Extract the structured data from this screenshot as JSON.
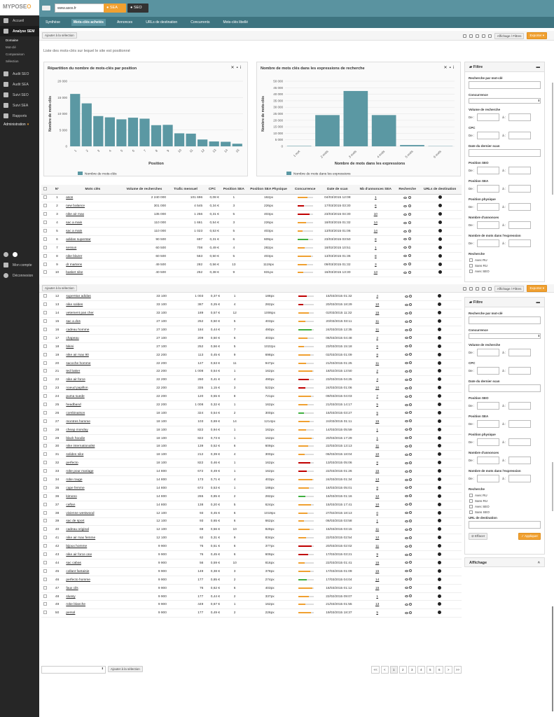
{
  "app": {
    "logo_a": "MYPOSE",
    "logo_b": "O"
  },
  "sidebar": {
    "items": [
      {
        "label": "Accueil"
      },
      {
        "label": "Analyse SEM"
      }
    ],
    "subitems": [
      "Domaine",
      "Mot-clé",
      "Comparaison",
      "Sélection"
    ],
    "items2": [
      {
        "label": "Audit SEO"
      },
      {
        "label": "Audit SEA"
      },
      {
        "label": "Suivi SEO"
      },
      {
        "label": "Suivi SEA"
      },
      {
        "label": "Rapports"
      },
      {
        "label": "Administration"
      }
    ],
    "bottom": [
      {
        "label": "Mon compte"
      },
      {
        "label": "Déconnexion"
      }
    ]
  },
  "topbar": {
    "url": "www.asos.fr",
    "sea_label": "SEA",
    "seo_label": "SEO"
  },
  "tabs": [
    "Synthèse",
    "Mots-clés achetés",
    "Annonces",
    "URLs de destination",
    "Concurrents",
    "Mots-clés libellé"
  ],
  "toolbar": {
    "add_selection": "Ajouter à la sélection",
    "affichage": "Affichage / Filtres",
    "exporter": "Exporter"
  },
  "description": "Liste des mots-clés sur lequel le site est positionné",
  "chart1": {
    "title": "Répartition du nombre de mots-clés par position"
  },
  "chart2": {
    "title": "Nombre de mots clés dans les expressions de recherche"
  },
  "chart_data": [
    {
      "type": "bar",
      "title": "Répartition du nombre de mots-clés par position",
      "xlabel": "Position",
      "ylabel": "Nombre de mots-clés",
      "categories": [
        "1",
        "2",
        "3",
        "4",
        "5",
        "6",
        "7",
        "8",
        "9",
        "10",
        "11",
        "12",
        "13",
        "14",
        "15"
      ],
      "series": [
        {
          "name": "Nombre de mots-clés",
          "values": [
            16100,
            13200,
            9300,
            8900,
            8300,
            8800,
            8500,
            6500,
            6600,
            4000,
            3900,
            2100,
            1500,
            1400,
            800
          ]
        }
      ],
      "ylim": [
        0,
        20000
      ],
      "yticks": [
        "0",
        "5 000",
        "10 000",
        "15 000",
        "20 000"
      ],
      "legend": "bottom-left",
      "color": "#5b98a3"
    },
    {
      "type": "bar",
      "title": "Nombre de mots clés dans les expressions de recherche",
      "xlabel": "Nombre de mots dans les expressions",
      "ylabel": "Nombre de mots-clés",
      "categories": [
        "1 mot",
        "2 mots",
        "3 mots",
        "4 mots",
        "5 mots",
        "6 mots"
      ],
      "series": [
        {
          "name": "Nombre de mots dans les expressions",
          "values": [
            300,
            24000,
            42500,
            24000,
            1000,
            200
          ]
        }
      ],
      "ylim": [
        0,
        50000
      ],
      "yticks": [
        "0",
        "5 000",
        "10 000",
        "15 000",
        "20 000",
        "25 000",
        "30 000",
        "35 000",
        "40 000",
        "45 000",
        "50 000"
      ],
      "legend": "bottom-left",
      "color": "#5b98a3"
    }
  ],
  "table": {
    "headers": [
      "N°",
      "Mots clés",
      "Volume de recherches",
      "Trafic mensuel",
      "CPC",
      "Position SEA",
      "Position SEA Physique",
      "Concurrence",
      "Date de scan",
      "Nb d'annonces SEA",
      "Recherche",
      "URLs de destination"
    ],
    "rows": [
      [
        "1",
        "asos",
        "2 240 000",
        "101 696",
        "0,08 €",
        "1",
        "162px",
        "04/03/2015 12:08",
        "1"
      ],
      [
        "2",
        "new balance",
        "301 000",
        "4 545",
        "0,34 €",
        "3",
        "226px",
        "17/03/2015 03:30",
        "6"
      ],
      [
        "3",
        "nike air max",
        "135 000",
        "1 256",
        "0,31 €",
        "5",
        "403px",
        "23/03/2015 04:30",
        "10"
      ],
      [
        "4",
        "sac a main",
        "110 000",
        "1 661",
        "0,54 €",
        "3",
        "226px",
        "18/03/2015 01:32",
        "14"
      ],
      [
        "5",
        "sac a main",
        "110 000",
        "1 023",
        "0,53 €",
        "5",
        "403px",
        "13/03/2015 01:06",
        "14"
      ],
      [
        "6",
        "adidas superstar",
        "90 500",
        "697",
        "0,31 €",
        "6",
        "609px",
        "23/03/2015 03:50",
        "8"
      ],
      [
        "7",
        "sessun",
        "60 500",
        "708",
        "0,49 €",
        "4",
        "282px",
        "18/02/2015 10:51",
        "1"
      ],
      [
        "8",
        "nike blazer",
        "60 500",
        "563",
        "0,50 €",
        "5",
        "403px",
        "13/03/2015 01:36",
        "8"
      ],
      [
        "9",
        "dr martens",
        "49 500",
        "282",
        "0,56 €",
        "13",
        "1119px",
        "09/03/2015 01:32",
        "3"
      ],
      [
        "10",
        "basket nike",
        "40 500",
        "252",
        "0,38 €",
        "9",
        "831px",
        "16/03/2015 13:30",
        "13"
      ]
    ],
    "rows2": [
      [
        "12",
        "superstar adidas",
        "33 100",
        "1 003",
        "0,37 €",
        "1",
        "188px",
        "15/03/2015 01:32",
        "4"
      ],
      [
        "13",
        "nike soldes",
        "33 100",
        "387",
        "0,25 €",
        "4",
        "282px",
        "20/03/2015 18:29",
        "10"
      ],
      [
        "14",
        "vetement pas cher",
        "33 100",
        "189",
        "0,57 €",
        "12",
        "1006px",
        "02/03/2015 11:32",
        "15"
      ],
      [
        "15",
        "sac a dos",
        "27 100",
        "252",
        "0,50 €",
        "5",
        "403px",
        "20/03/2015 03:11",
        "11"
      ],
      [
        "16",
        "cadeau homme",
        "27 100",
        "184",
        "0,44 €",
        "7",
        "490px",
        "24/03/2015 12:35",
        "11"
      ],
      [
        "17",
        "chapeau",
        "27 100",
        "209",
        "0,50 €",
        "6",
        "403px",
        "06/03/2015 04:48",
        "2"
      ],
      [
        "18",
        "bikini",
        "27 100",
        "252",
        "0,56 €",
        "5",
        "1022px",
        "23/03/2015 15:18",
        "6"
      ],
      [
        "19",
        "nike air max 90",
        "22 200",
        "113",
        "0,45 €",
        "9",
        "698px",
        "02/03/2015 01:09",
        "8"
      ],
      [
        "20",
        "sacoche homme",
        "22 200",
        "127",
        "0,63 €",
        "11",
        "947px",
        "21/03/2015 01:25",
        "11"
      ],
      [
        "21",
        "ted baker",
        "22 200",
        "1 008",
        "0,54 €",
        "1",
        "162px",
        "18/02/2015 13:50",
        "2"
      ],
      [
        "22",
        "nike air force",
        "22 200",
        "260",
        "0,41 €",
        "4",
        "490px",
        "23/03/2015 04:25",
        "4"
      ],
      [
        "23",
        "noeud papillon",
        "22 200",
        "335",
        "1,15 €",
        "3",
        "522px",
        "24/03/2015 01:06",
        "10"
      ],
      [
        "24",
        "puma suede",
        "22 200",
        "120",
        "0,55 €",
        "8",
        "721px",
        "09/03/2015 04:03",
        "7"
      ],
      [
        "25",
        "headband",
        "22 200",
        "1 008",
        "0,32 €",
        "1",
        "162px",
        "21/03/2015 14:17",
        "5"
      ],
      [
        "26",
        "combinaison",
        "18 100",
        "324",
        "0,54 €",
        "2",
        "300px",
        "15/03/2015 03:27",
        "5"
      ],
      [
        "27",
        "montres homme",
        "18 100",
        "103",
        "0,69 €",
        "14",
        "1214px",
        "24/03/2015 01:11",
        "15"
      ],
      [
        "28",
        "cheap monday",
        "18 100",
        "822",
        "0,94 €",
        "1",
        "162px",
        "14/03/2015 05:59",
        "1"
      ],
      [
        "29",
        "black hoodie",
        "18 100",
        "822",
        "0,73 €",
        "1",
        "162px",
        "20/03/2015 17:29",
        "1"
      ],
      [
        "30",
        "nike internationalist",
        "18 100",
        "139",
        "0,52 €",
        "6",
        "609px",
        "22/03/2015 13:13",
        "11"
      ],
      [
        "31",
        "solides nike",
        "18 100",
        "212",
        "0,39 €",
        "4",
        "300px",
        "06/03/2015 18:04",
        "10"
      ],
      [
        "32",
        "perfecto",
        "18 100",
        "822",
        "0,46 €",
        "1",
        "162px",
        "13/03/2015 05:06",
        "8"
      ],
      [
        "33",
        "robe pour mariage",
        "14 800",
        "672",
        "0,49 €",
        "1",
        "162px",
        "22/03/2015 01:26",
        "15"
      ],
      [
        "34",
        "robe rouge",
        "14 800",
        "173",
        "0,71 €",
        "4",
        "403px",
        "24/03/2015 01:34",
        "13"
      ],
      [
        "35",
        "cape femme",
        "14 800",
        "672",
        "0,53 €",
        "1",
        "188px",
        "16/03/2015 05:01",
        "8"
      ],
      [
        "36",
        "kimono",
        "14 800",
        "265",
        "0,85 €",
        "2",
        "282px",
        "16/03/2015 01:16",
        "12"
      ],
      [
        "37",
        "caftan",
        "14 800",
        "138",
        "0,20 €",
        "5",
        "624px",
        "15/03/2015 17:41",
        "10"
      ],
      [
        "38",
        "vivienne westwood",
        "12 100",
        "93",
        "0,45 €",
        "6",
        "1019px",
        "27/02/2015 18:13",
        "0"
      ],
      [
        "39",
        "sac de sport",
        "12 100",
        "93",
        "0,65 €",
        "6",
        "662px",
        "06/03/2015 03:58",
        "1"
      ],
      [
        "40",
        "cadeau original",
        "12 100",
        "69",
        "0,56 €",
        "10",
        "829px",
        "15/03/2015 03:15",
        "11"
      ],
      [
        "41",
        "nike air max femme",
        "12 100",
        "62",
        "0,31 €",
        "9",
        "834px",
        "22/03/2015 02:54",
        "12"
      ],
      [
        "42",
        "bijoux homme",
        "9 900",
        "76",
        "0,51 €",
        "6",
        "377px",
        "20/03/2015 02:02",
        "11"
      ],
      [
        "43",
        "nike air force one",
        "9 900",
        "76",
        "0,45 €",
        "6",
        "609px",
        "17/03/2015 03:21",
        "9"
      ],
      [
        "44",
        "sac cabas",
        "9 900",
        "56",
        "0,59 €",
        "10",
        "816px",
        "22/03/2015 01:41",
        "15"
      ],
      [
        "45",
        "collant fantaisie",
        "9 900",
        "149",
        "0,38 €",
        "3",
        "378px",
        "17/03/2015 01:09",
        "15"
      ],
      [
        "46",
        "perfecto homme",
        "9 900",
        "177",
        "0,85 €",
        "2",
        "274px",
        "17/03/2015 04:04",
        "14"
      ],
      [
        "47",
        "faux cils",
        "9 900",
        "76",
        "0,62 €",
        "6",
        "403px",
        "16/03/2015 01:12",
        "15"
      ],
      [
        "48",
        "slussy",
        "9 900",
        "177",
        "0,44 €",
        "2",
        "337px",
        "22/02/2015 09:07",
        "1"
      ],
      [
        "49",
        "robe blanche",
        "9 900",
        "449",
        "0,67 €",
        "1",
        "162px",
        "21/03/2015 01:55",
        "13"
      ],
      [
        "50",
        "persol",
        "9 900",
        "177",
        "0,49 €",
        "2",
        "226px",
        "19/03/2015 18:37",
        "5"
      ]
    ]
  },
  "filter": {
    "title": "Filtre",
    "labels": {
      "recherche": "Recherche par mot-clé",
      "concurrence": "Concurrence",
      "volume": "Volume de recherche",
      "cpc": "CPC",
      "date": "Date du dernier scan",
      "pos_seo": "Position SEO",
      "pos_sea": "Position SEA",
      "pos_phys": "Position physique",
      "nb_annonces": "Nombre d'annonces",
      "nb_mots": "Nombre de mots dans l'expression",
      "recherche2": "Recherche",
      "url": "URL de destination"
    },
    "de": "De :",
    "a": "à :",
    "checks": [
      "Avec RU",
      "Sans RU",
      "Avec SEO",
      "Sans SEO"
    ],
    "effacer": "Effacer",
    "appliquer": "Appliquer",
    "affichage": "Affichage"
  },
  "bottom": {
    "add_selection": "Ajouter à la sélection",
    "pages": [
      "<<",
      "<",
      "1",
      "2",
      "3",
      "4",
      "5",
      "6",
      ">",
      ">>"
    ]
  }
}
